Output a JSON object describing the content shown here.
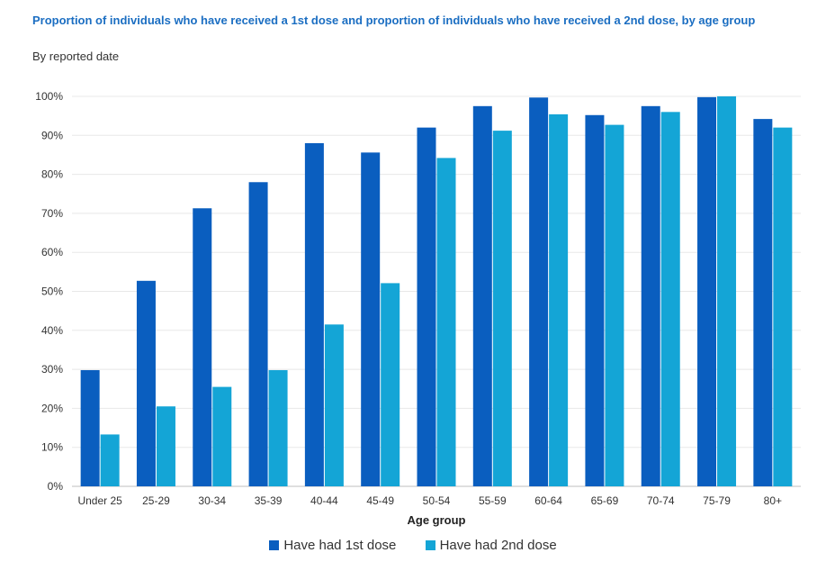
{
  "chart_data": {
    "type": "bar",
    "title": "Proportion of individuals who have received a 1st dose and proportion of individuals who have received a 2nd dose, by age group",
    "subtitle": "By reported date",
    "xlabel": "Age group",
    "ylabel": "",
    "ylim": [
      0,
      100
    ],
    "yticks": [
      "0%",
      "10%",
      "20%",
      "30%",
      "40%",
      "50%",
      "60%",
      "70%",
      "80%",
      "90%",
      "100%"
    ],
    "grid": true,
    "legend_position": "bottom",
    "categories": [
      "Under 25",
      "25-29",
      "30-34",
      "35-39",
      "40-44",
      "45-49",
      "50-54",
      "55-59",
      "60-64",
      "65-69",
      "70-74",
      "75-79",
      "80+"
    ],
    "series": [
      {
        "name": "Have had 1st dose",
        "color": "#0a5ebf",
        "values": [
          29.8,
          52.7,
          71.3,
          78,
          88,
          85.6,
          92,
          97.5,
          99.7,
          95.2,
          97.5,
          99.8,
          94.2
        ]
      },
      {
        "name": "Have had 2nd dose",
        "color": "#14a5d6",
        "values": [
          13.3,
          20.5,
          25.5,
          29.8,
          41.5,
          52.1,
          84.2,
          91.2,
          95.4,
          92.7,
          96,
          100,
          92
        ]
      }
    ]
  }
}
